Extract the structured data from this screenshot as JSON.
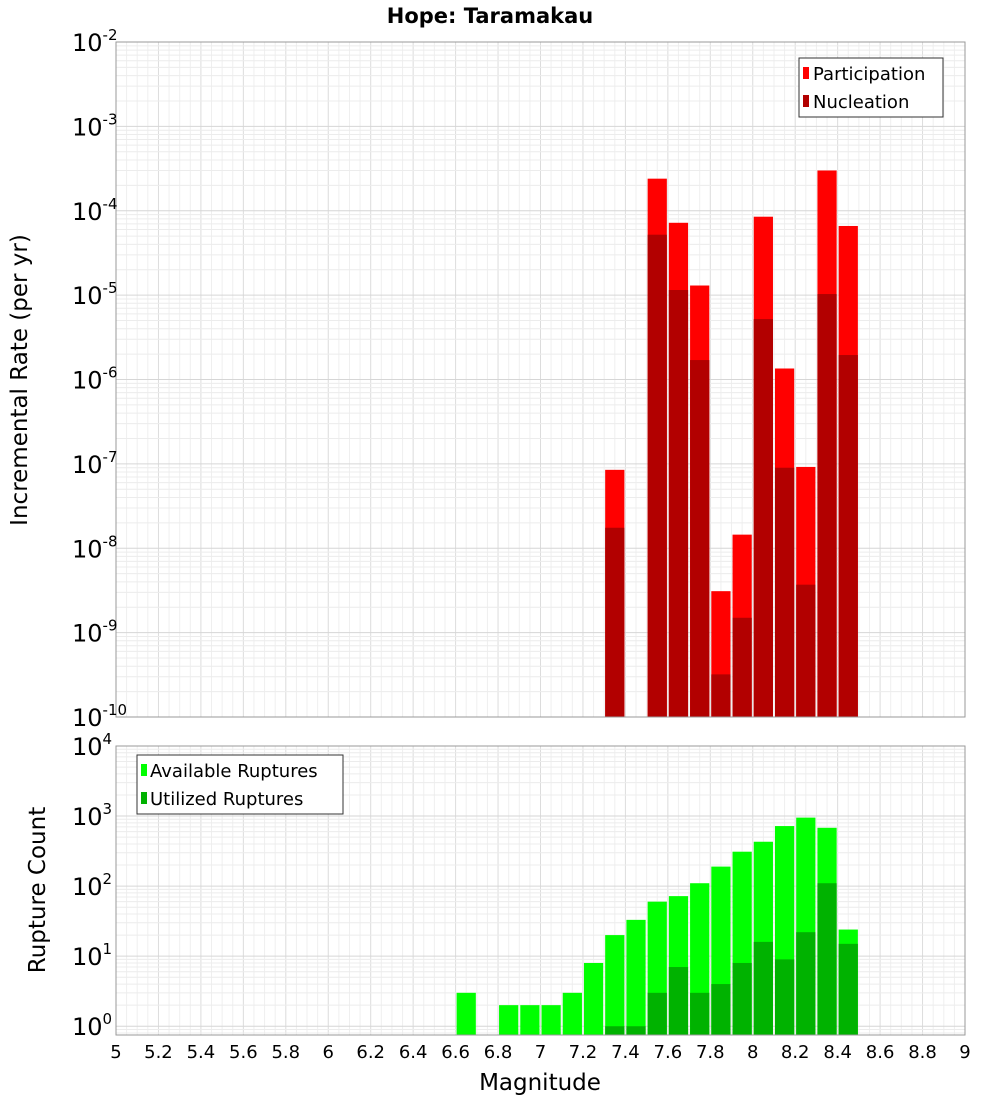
{
  "chart_data": [
    {
      "type": "bar",
      "title": "Hope: Taramakau",
      "xlabel": "Magnitude",
      "ylabel": "Incremental Rate (per yr)",
      "yscale": "log",
      "xlim": [
        5,
        9
      ],
      "ylim": [
        1e-10,
        0.01
      ],
      "grid": true,
      "legend_position": "top-right",
      "y_tick_base": "10",
      "y_tick_exponents": [
        "-10",
        "-9",
        "-8",
        "-7",
        "-6",
        "-5",
        "-4",
        "-3",
        "-2"
      ],
      "x": [
        7.35,
        7.55,
        7.65,
        7.75,
        7.85,
        7.95,
        8.05,
        8.15,
        8.25,
        8.35,
        8.45
      ],
      "series": [
        {
          "name": "Participation",
          "color": "#ff0000",
          "values": [
            8.5e-08,
            0.00024,
            7.2e-05,
            1.3e-05,
            3.1e-09,
            1.45e-08,
            8.5e-05,
            1.35e-06,
            9.2e-08,
            0.0003,
            6.6e-05
          ]
        },
        {
          "name": "Nucleation",
          "color": "#b20000",
          "values": [
            1.75e-08,
            5.2e-05,
            1.15e-05,
            1.7e-06,
            3.2e-10,
            1.5e-09,
            5.2e-06,
            9e-08,
            3.7e-09,
            1.03e-05,
            1.95e-06
          ]
        }
      ]
    },
    {
      "type": "bar",
      "xlabel": "Magnitude",
      "ylabel": "Rupture Count",
      "yscale": "log",
      "xlim": [
        5,
        9
      ],
      "ylim": [
        0.75,
        10000
      ],
      "grid": true,
      "legend_position": "top-left",
      "y_tick_base": "10",
      "y_tick_exponents": [
        "0",
        "1",
        "2",
        "3",
        "4"
      ],
      "x_ticks": [
        "5",
        "5.2",
        "5.4",
        "5.6",
        "5.8",
        "6",
        "6.2",
        "6.4",
        "6.6",
        "6.8",
        "7",
        "7.2",
        "7.4",
        "7.6",
        "7.8",
        "8",
        "8.2",
        "8.4",
        "8.6",
        "8.8",
        "9"
      ],
      "x": [
        6.65,
        6.85,
        6.95,
        7.05,
        7.15,
        7.25,
        7.35,
        7.45,
        7.55,
        7.65,
        7.75,
        7.85,
        7.95,
        8.05,
        8.15,
        8.25,
        8.35,
        8.45
      ],
      "series": [
        {
          "name": "Available Ruptures",
          "color": "#00ff00",
          "values": [
            3,
            2,
            2,
            2,
            3,
            8,
            20,
            33,
            60,
            72,
            110,
            190,
            310,
            430,
            720,
            950,
            680,
            24
          ]
        },
        {
          "name": "Utilized Ruptures",
          "color": "#00b200",
          "values": [
            0,
            0,
            0,
            0,
            0,
            0,
            1,
            1,
            3,
            7,
            3,
            4,
            8,
            16,
            9,
            22,
            110,
            15
          ]
        }
      ]
    }
  ]
}
